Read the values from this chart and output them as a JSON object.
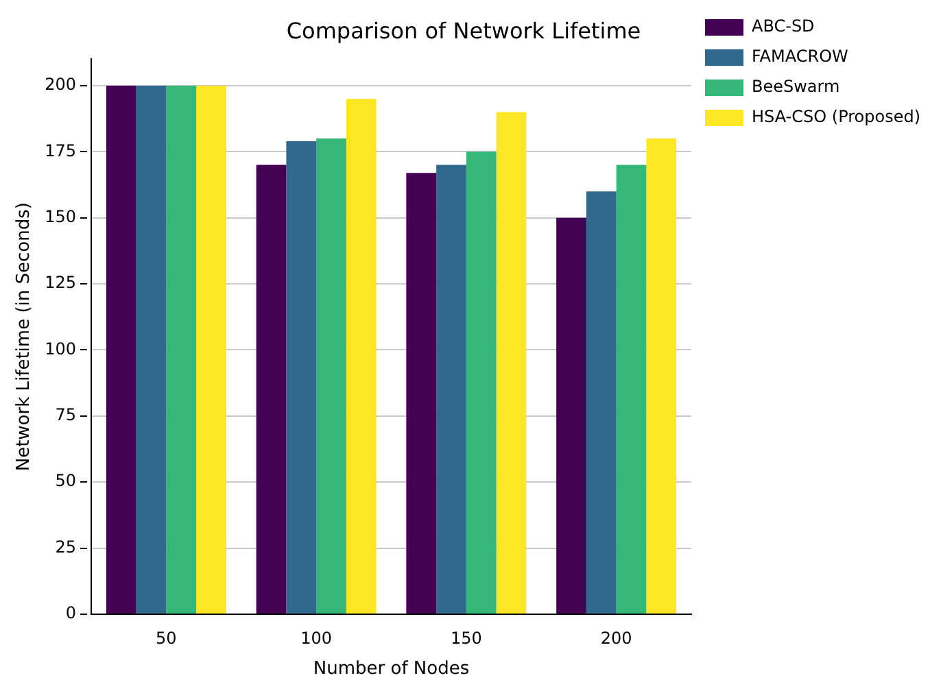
{
  "chart_data": {
    "type": "bar",
    "title": "Comparison of Network Lifetime",
    "xlabel": "Number of Nodes",
    "ylabel": "Network Lifetime (in Seconds)",
    "categories": [
      "50",
      "100",
      "150",
      "200"
    ],
    "series": [
      {
        "name": "ABC-SD",
        "color": "#440154",
        "values": [
          200,
          170,
          167,
          150
        ]
      },
      {
        "name": "FAMACROW",
        "color": "#31688e",
        "values": [
          200,
          179,
          170,
          160
        ]
      },
      {
        "name": "BeeSwarm",
        "color": "#35b779",
        "values": [
          200,
          180,
          175,
          170
        ]
      },
      {
        "name": "HSA-CSO (Proposed)",
        "color": "#fde725",
        "values": [
          200,
          195,
          190,
          180
        ]
      }
    ],
    "ylim": [
      0,
      210
    ],
    "yticks": [
      0,
      25,
      50,
      75,
      100,
      125,
      150,
      175,
      200
    ],
    "grid": "y",
    "legend": "right"
  }
}
